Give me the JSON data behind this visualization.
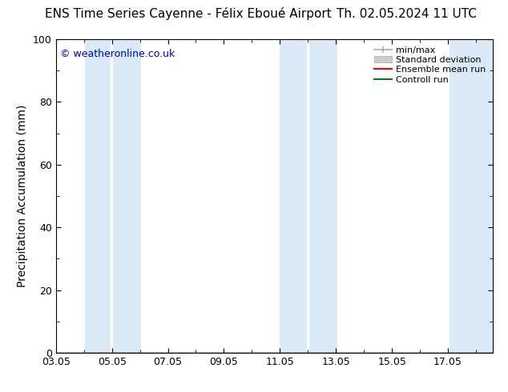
{
  "title_left": "ENS Time Series Cayenne - Félix Eboué Airport",
  "title_right": "Th. 02.05.2024 11 UTC",
  "ylabel": "Precipitation Accumulation (mm)",
  "watermark": "© weatheronline.co.uk",
  "watermark_color": "#0000cc",
  "ylim": [
    0,
    100
  ],
  "yticks": [
    0,
    20,
    40,
    60,
    80,
    100
  ],
  "xticks_labels": [
    "03.05",
    "05.05",
    "07.05",
    "09.05",
    "11.05",
    "13.05",
    "15.05",
    "17.05"
  ],
  "xtick_positions": [
    3,
    5,
    7,
    9,
    11,
    13,
    15,
    17
  ],
  "xlim": [
    3.0,
    18.6
  ],
  "background_color": "#ffffff",
  "shading_color": "#daeaf7",
  "shaded_bands": [
    {
      "x_start": 4.05,
      "x_end": 4.95
    },
    {
      "x_start": 5.05,
      "x_end": 6.05
    },
    {
      "x_start": 11.0,
      "x_end": 11.95
    },
    {
      "x_start": 12.05,
      "x_end": 13.05
    },
    {
      "x_start": 17.05,
      "x_end": 18.6
    }
  ],
  "legend_labels": [
    "min/max",
    "Standard deviation",
    "Ensemble mean run",
    "Controll run"
  ],
  "minmax_color": "#aaaaaa",
  "std_color": "#cccccc",
  "ensemble_color": "#ff0000",
  "control_color": "#008000",
  "title_fontsize": 11,
  "tick_fontsize": 9,
  "ylabel_fontsize": 10,
  "legend_fontsize": 8
}
